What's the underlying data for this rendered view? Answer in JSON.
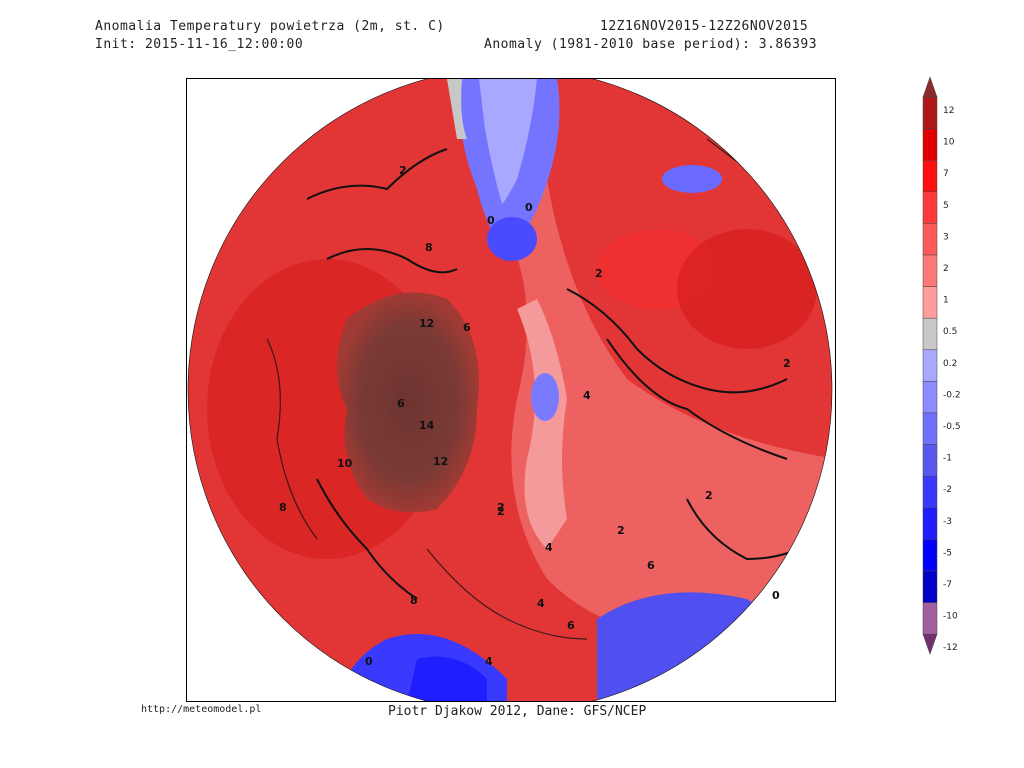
{
  "header": {
    "title": "Anomalia Temperatury powietrza (2m, st. C)",
    "init": "Init: 2015-11-16_12:00:00",
    "period": "12Z16NOV2015-12Z26NOV2015",
    "anomaly": "Anomaly (1981-2010 base period): 3.86393"
  },
  "footer": {
    "url": "http://meteomodel.pl",
    "credit": "Piotr Djakow 2012, Dane: GFS/NCEP"
  },
  "legend": {
    "labels": [
      "12",
      "10",
      "7",
      "5",
      "3",
      "2",
      "1",
      "0.5",
      "0.2",
      "-0.2",
      "-0.5",
      "-1",
      "-2",
      "-3",
      "-5",
      "-7",
      "-10",
      "-12"
    ],
    "colors": [
      "#8b2a2a",
      "#b01818",
      "#e00000",
      "#ff1010",
      "#ff3a3a",
      "#ff5a5a",
      "#ff7878",
      "#ff9c9c",
      "#c8c8c8",
      "#a8a8ff",
      "#8c8cff",
      "#7070ff",
      "#5858f0",
      "#3a3aff",
      "#1e1eff",
      "#0000ff",
      "#0000c8",
      "#a060a0",
      "#703070"
    ]
  },
  "contour_labels": [
    "0",
    "0",
    "2",
    "2",
    "6",
    "8",
    "12",
    "12",
    "14",
    "10",
    "6",
    "8",
    "2",
    "4",
    "2",
    "2",
    "4",
    "6",
    "8",
    "0",
    "4",
    "6",
    "2",
    "4",
    "2",
    "0"
  ],
  "colors": {
    "hot": "#7a3a35",
    "warm": "#e84040",
    "mild": "#f07070",
    "cold": "#4a4aff",
    "neutral": "#c8c8c8"
  }
}
